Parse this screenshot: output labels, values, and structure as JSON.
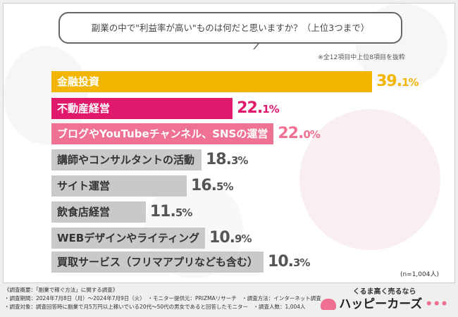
{
  "question": "副業の中で\"利益率が高い\"ものは何だと思いますか？（上位3つまで）",
  "note": "※全12項目中上位8項目を抜粋",
  "sample": "(n=1,004人)",
  "chart_data": {
    "type": "bar",
    "orientation": "horizontal",
    "categories": [
      "金融投資",
      "不動産経営",
      "ブログやYouTubeチャンネル、SNSの運営",
      "講師やコンサルタントの活動",
      "サイト運営",
      "飲食店経営",
      "WEBデザインやライティング",
      "買取サービス（フリマアプリなども含む）"
    ],
    "values": [
      39.1,
      22.1,
      22.0,
      18.3,
      16.5,
      11.5,
      10.9,
      10.3
    ],
    "labels": [
      "39.1%",
      "22.1%",
      "22.0%",
      "18.3%",
      "16.5%",
      "11.5%",
      "10.9%",
      "10.3%"
    ],
    "unit": "%",
    "colors": [
      "#f2b600",
      "#e0196d",
      "#ef7193",
      "#c9c9c9",
      "#c9c9c9",
      "#c9c9c9",
      "#c9c9c9",
      "#c9c9c9"
    ],
    "value_colors": [
      "#f2b600",
      "#e0196d",
      "#ef7193",
      "#555555",
      "#555555",
      "#555555",
      "#555555",
      "#555555"
    ]
  },
  "footer": {
    "title": "《調査概要：「副業で稼ぐ方法」に関する調査》",
    "line1": "・調査期間：2024年7月8日（月）～2024年7月9日（火）　・モニター提供元：PRIZMAリサーチ　・調査方法：インターネット調査",
    "line2": "・調査対象：調査回答時に副業で月5万円以上稼いでいる20代～50代の男女であると回答したモニター　・調査人数：1,004人"
  },
  "logo": {
    "tagline": "くるま高く売るなら",
    "name": "ハッピーカーズ"
  }
}
